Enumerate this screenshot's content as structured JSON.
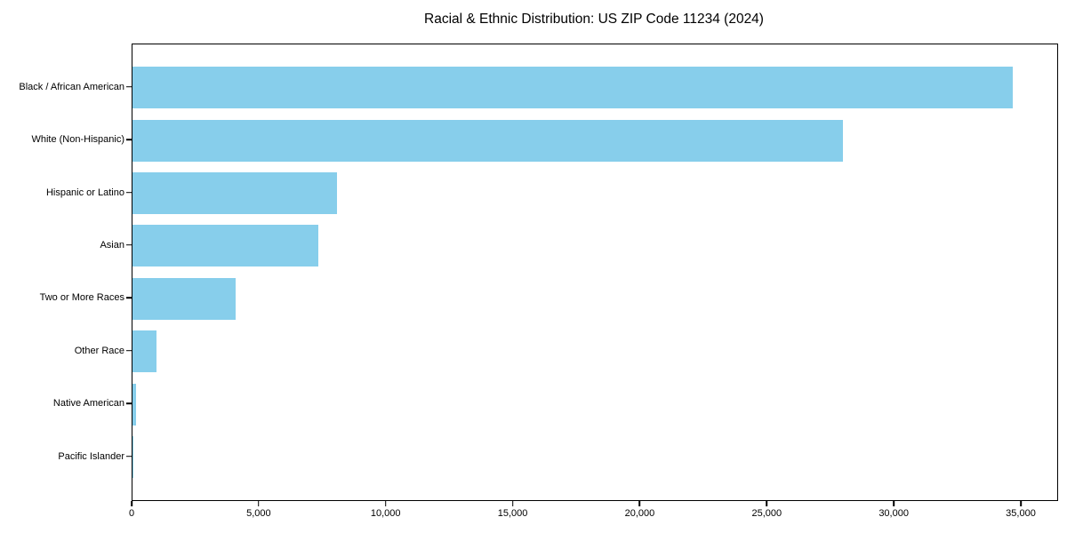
{
  "title": "Racial & Ethnic Distribution: US ZIP Code 11234 (2024)",
  "colors": {
    "bar": "#87CEEB",
    "axis": "#000000",
    "background": "#ffffff",
    "text": "#000000"
  },
  "chart_data": {
    "type": "bar",
    "orientation": "horizontal",
    "title": "Racial & Ethnic Distribution: US ZIP Code 11234 (2024)",
    "xlabel": "",
    "ylabel": "",
    "categories": [
      "Black / African American",
      "White (Non-Hispanic)",
      "Hispanic or Latino",
      "Asian",
      "Two or More Races",
      "Other Race",
      "Native American",
      "Pacific Islander"
    ],
    "values": [
      34650,
      27950,
      8050,
      7300,
      4050,
      950,
      150,
      25
    ],
    "xlim": [
      0,
      36400
    ],
    "x_ticks": [
      0,
      5000,
      10000,
      15000,
      20000,
      25000,
      30000,
      35000
    ],
    "x_tick_labels": [
      "0",
      "5,000",
      "10,000",
      "15,000",
      "20,000",
      "25,000",
      "30,000",
      "35,000"
    ],
    "bar_color": "#87CEEB",
    "grid": false,
    "legend": null
  }
}
